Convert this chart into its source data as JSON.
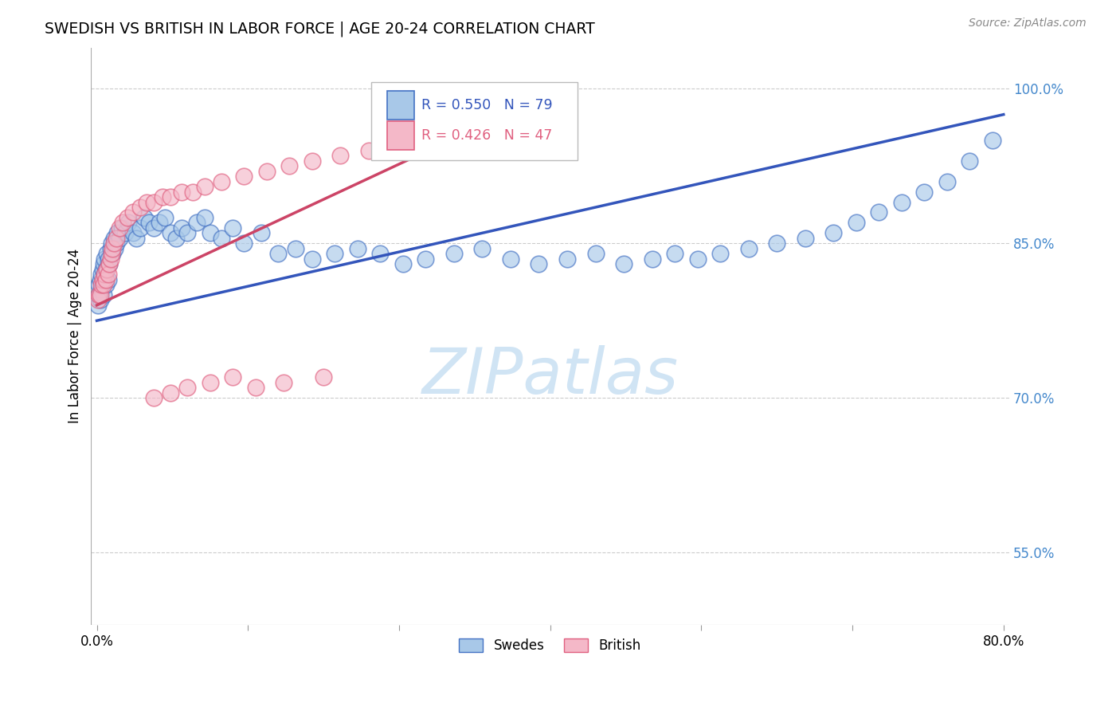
{
  "title": "SWEDISH VS BRITISH IN LABOR FORCE | AGE 20-24 CORRELATION CHART",
  "source": "Source: ZipAtlas.com",
  "ylabel": "In Labor Force | Age 20-24",
  "watermark": "ZIPatlas",
  "legend_swedes": "Swedes",
  "legend_british": "British",
  "r_swedes": "R = 0.550",
  "n_swedes": "N = 79",
  "r_british": "R = 0.426",
  "n_british": "N = 47",
  "swedes_color": "#a8c8e8",
  "british_color": "#f4b8c8",
  "swedes_edge_color": "#4472c4",
  "british_edge_color": "#e06080",
  "swedes_line_color": "#3355bb",
  "british_line_color": "#cc4466",
  "background_color": "#ffffff",
  "watermark_color": "#d0e4f4",
  "ytick_color": "#4488cc",
  "xmin": 0.0,
  "xmax": 0.8,
  "ymin": 0.48,
  "ymax": 1.04,
  "swedes_x": [
    0.001,
    0.002,
    0.002,
    0.003,
    0.003,
    0.004,
    0.004,
    0.005,
    0.005,
    0.006,
    0.006,
    0.007,
    0.007,
    0.008,
    0.008,
    0.009,
    0.01,
    0.01,
    0.011,
    0.012,
    0.013,
    0.014,
    0.015,
    0.016,
    0.017,
    0.018,
    0.02,
    0.022,
    0.025,
    0.028,
    0.032,
    0.035,
    0.038,
    0.042,
    0.046,
    0.05,
    0.055,
    0.06,
    0.065,
    0.07,
    0.075,
    0.08,
    0.088,
    0.095,
    0.1,
    0.11,
    0.12,
    0.13,
    0.145,
    0.16,
    0.175,
    0.19,
    0.21,
    0.23,
    0.25,
    0.27,
    0.29,
    0.315,
    0.34,
    0.365,
    0.39,
    0.415,
    0.44,
    0.465,
    0.49,
    0.51,
    0.53,
    0.55,
    0.575,
    0.6,
    0.625,
    0.65,
    0.67,
    0.69,
    0.71,
    0.73,
    0.75,
    0.77,
    0.79
  ],
  "swedes_y": [
    0.79,
    0.8,
    0.81,
    0.795,
    0.815,
    0.805,
    0.82,
    0.81,
    0.825,
    0.8,
    0.83,
    0.82,
    0.835,
    0.81,
    0.825,
    0.84,
    0.815,
    0.835,
    0.83,
    0.845,
    0.85,
    0.84,
    0.855,
    0.845,
    0.85,
    0.86,
    0.855,
    0.865,
    0.86,
    0.87,
    0.86,
    0.855,
    0.865,
    0.875,
    0.87,
    0.865,
    0.87,
    0.875,
    0.86,
    0.855,
    0.865,
    0.86,
    0.87,
    0.875,
    0.86,
    0.855,
    0.865,
    0.85,
    0.86,
    0.84,
    0.845,
    0.835,
    0.84,
    0.845,
    0.84,
    0.83,
    0.835,
    0.84,
    0.845,
    0.835,
    0.83,
    0.835,
    0.84,
    0.83,
    0.835,
    0.84,
    0.835,
    0.84,
    0.845,
    0.85,
    0.855,
    0.86,
    0.87,
    0.88,
    0.89,
    0.9,
    0.91,
    0.93,
    0.95
  ],
  "british_x": [
    0.001,
    0.002,
    0.003,
    0.004,
    0.005,
    0.006,
    0.007,
    0.008,
    0.009,
    0.01,
    0.011,
    0.012,
    0.013,
    0.014,
    0.015,
    0.017,
    0.02,
    0.023,
    0.027,
    0.032,
    0.038,
    0.044,
    0.05,
    0.058,
    0.065,
    0.075,
    0.085,
    0.095,
    0.11,
    0.13,
    0.15,
    0.17,
    0.19,
    0.215,
    0.24,
    0.265,
    0.295,
    0.32,
    0.35,
    0.05,
    0.065,
    0.08,
    0.1,
    0.12,
    0.14,
    0.165,
    0.2
  ],
  "british_y": [
    0.795,
    0.8,
    0.8,
    0.81,
    0.815,
    0.81,
    0.82,
    0.815,
    0.825,
    0.82,
    0.83,
    0.835,
    0.84,
    0.845,
    0.85,
    0.855,
    0.865,
    0.87,
    0.875,
    0.88,
    0.885,
    0.89,
    0.89,
    0.895,
    0.895,
    0.9,
    0.9,
    0.905,
    0.91,
    0.915,
    0.92,
    0.925,
    0.93,
    0.935,
    0.94,
    0.945,
    0.95,
    0.955,
    0.96,
    0.7,
    0.705,
    0.71,
    0.715,
    0.72,
    0.71,
    0.715,
    0.72
  ],
  "swedes_line_x": [
    0.0,
    0.8
  ],
  "swedes_line_y": [
    0.775,
    0.975
  ],
  "british_line_x": [
    0.0,
    0.38
  ],
  "british_line_y": [
    0.79,
    0.985
  ]
}
